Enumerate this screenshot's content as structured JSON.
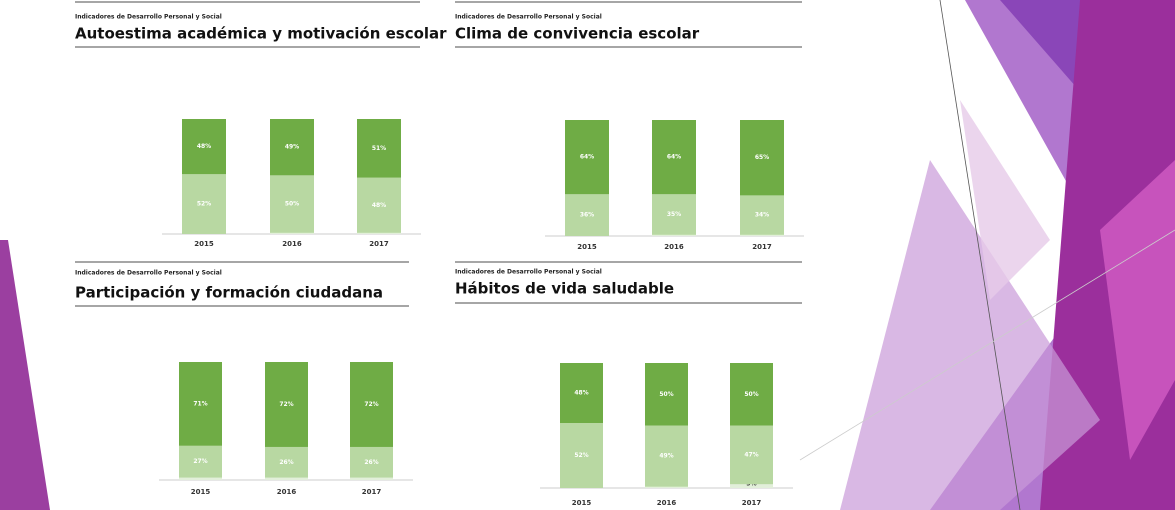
{
  "chart_data": [
    {
      "type": "bar",
      "subtitle": "Indicadores de Desarrollo Personal y Social",
      "title": "Autoestima académica y motivación escolar",
      "categories": [
        "2015",
        "2016",
        "2017"
      ],
      "stacked": true,
      "ylim": [
        0,
        100
      ],
      "series": [
        {
          "color": "#e2efda",
          "values": [
            0,
            1,
            1
          ],
          "value_labels": [
            "0%",
            "1%",
            "1%"
          ]
        },
        {
          "color": "#b8d8a2",
          "values": [
            52,
            50,
            48
          ],
          "value_labels": [
            "52%",
            "50%",
            "48%"
          ]
        },
        {
          "color": "#6fac45",
          "values": [
            48,
            49,
            51
          ],
          "value_labels": [
            "48%",
            "49%",
            "51%"
          ]
        }
      ]
    },
    {
      "type": "bar",
      "subtitle": "Indicadores de Desarrollo Personal y Social",
      "title": "Clima de convivencia escolar",
      "categories": [
        "2015",
        "2016",
        "2017"
      ],
      "stacked": true,
      "ylim": [
        0,
        100
      ],
      "series": [
        {
          "color": "#e2efda",
          "values": [
            0,
            1,
            1
          ],
          "value_labels": [
            "0%",
            "1%",
            "1%"
          ]
        },
        {
          "color": "#b8d8a2",
          "values": [
            36,
            35,
            34
          ],
          "value_labels": [
            "36%",
            "35%",
            "34%"
          ]
        },
        {
          "color": "#6fac45",
          "values": [
            64,
            64,
            65
          ],
          "value_labels": [
            "64%",
            "64%",
            "65%"
          ]
        }
      ]
    },
    {
      "type": "bar",
      "subtitle": "Indicadores de Desarrollo Personal y Social",
      "title": "Participación y formación ciudadana",
      "categories": [
        "2015",
        "2016",
        "2017"
      ],
      "stacked": true,
      "ylim": [
        0,
        100
      ],
      "series": [
        {
          "color": "#e2efda",
          "values": [
            2,
            2,
            2
          ],
          "value_labels": [
            "2%",
            "2%",
            "2%"
          ]
        },
        {
          "color": "#b8d8a2",
          "values": [
            27,
            26,
            26
          ],
          "value_labels": [
            "27%",
            "26%",
            "26%"
          ]
        },
        {
          "color": "#6fac45",
          "values": [
            71,
            72,
            72
          ],
          "value_labels": [
            "71%",
            "72%",
            "72%"
          ]
        }
      ]
    },
    {
      "type": "bar",
      "subtitle": "Indicadores de Desarrollo Personal y Social",
      "title": "Hábitos de vida saludable",
      "categories": [
        "2015",
        "2016",
        "2017"
      ],
      "stacked": true,
      "ylim": [
        0,
        100
      ],
      "series": [
        {
          "color": "#e2efda",
          "values": [
            0,
            1,
            3
          ],
          "value_labels": [
            "0%",
            "1%",
            "3%"
          ]
        },
        {
          "color": "#b8d8a2",
          "values": [
            52,
            49,
            47
          ],
          "value_labels": [
            "52%",
            "49%",
            "47%"
          ]
        },
        {
          "color": "#6fac45",
          "values": [
            48,
            50,
            50
          ],
          "value_labels": [
            "48%",
            "50%",
            "50%"
          ]
        }
      ]
    }
  ]
}
